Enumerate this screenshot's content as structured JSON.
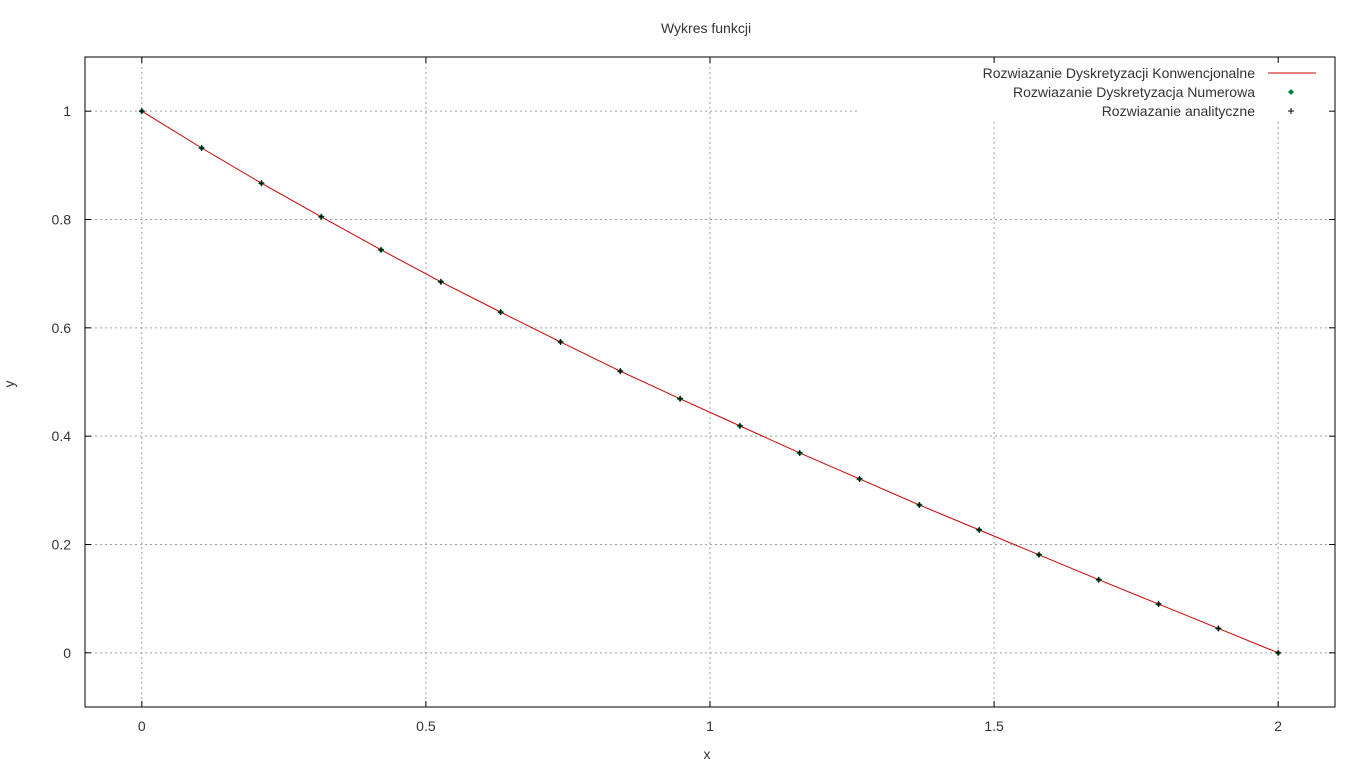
{
  "chart_data": {
    "type": "line",
    "title": "Wykres funkcji",
    "xlabel": "x",
    "ylabel": "y",
    "xlim": [
      -0.1,
      2.1
    ],
    "ylim": [
      -0.1,
      1.1
    ],
    "xticks": [
      0,
      0.5,
      1,
      1.5,
      2
    ],
    "xtick_labels": [
      "0",
      "0.5",
      "1",
      "1.5",
      "2"
    ],
    "yticks": [
      0,
      0.2,
      0.4,
      0.6,
      0.8,
      1
    ],
    "ytick_labels": [
      "0",
      "0.2",
      "0.4",
      "0.6",
      "0.8",
      "1"
    ],
    "grid": true,
    "legend_position": "top-right",
    "series": [
      {
        "name": "Rozwiazanie Dyskretyzacji Konwencjonalne",
        "style": "line",
        "color": "#cc0000",
        "x": [
          0,
          0.10526,
          0.21053,
          0.31579,
          0.42105,
          0.52632,
          0.63158,
          0.73684,
          0.84211,
          0.94737,
          1.05263,
          1.15789,
          1.26316,
          1.36842,
          1.47368,
          1.57895,
          1.68421,
          1.78947,
          1.89474,
          2
        ],
        "y": [
          1,
          0.932,
          0.867,
          0.805,
          0.744,
          0.685,
          0.629,
          0.574,
          0.52,
          0.469,
          0.419,
          0.369,
          0.321,
          0.273,
          0.227,
          0.181,
          0.135,
          0.09,
          0.045,
          0
        ]
      },
      {
        "name": "Rozwiazanie Dyskretyzacja Numerowa",
        "style": "diamond",
        "color": "#008040",
        "x": [
          0,
          0.10526,
          0.21053,
          0.31579,
          0.42105,
          0.52632,
          0.63158,
          0.73684,
          0.84211,
          0.94737,
          1.05263,
          1.15789,
          1.26316,
          1.36842,
          1.47368,
          1.57895,
          1.68421,
          1.78947,
          1.89474,
          2
        ],
        "y": [
          1,
          0.932,
          0.867,
          0.805,
          0.744,
          0.685,
          0.629,
          0.574,
          0.52,
          0.469,
          0.419,
          0.369,
          0.321,
          0.273,
          0.227,
          0.181,
          0.135,
          0.09,
          0.045,
          0
        ]
      },
      {
        "name": "Rozwiazanie analityczne",
        "style": "plus",
        "color": "#000000",
        "x": [
          0,
          0.10526,
          0.21053,
          0.31579,
          0.42105,
          0.52632,
          0.63158,
          0.73684,
          0.84211,
          0.94737,
          1.05263,
          1.15789,
          1.26316,
          1.36842,
          1.47368,
          1.57895,
          1.68421,
          1.78947,
          1.89474,
          2
        ],
        "y": [
          1,
          0.932,
          0.867,
          0.805,
          0.744,
          0.685,
          0.629,
          0.574,
          0.52,
          0.469,
          0.419,
          0.369,
          0.321,
          0.273,
          0.227,
          0.181,
          0.135,
          0.09,
          0.045,
          0
        ]
      }
    ]
  }
}
